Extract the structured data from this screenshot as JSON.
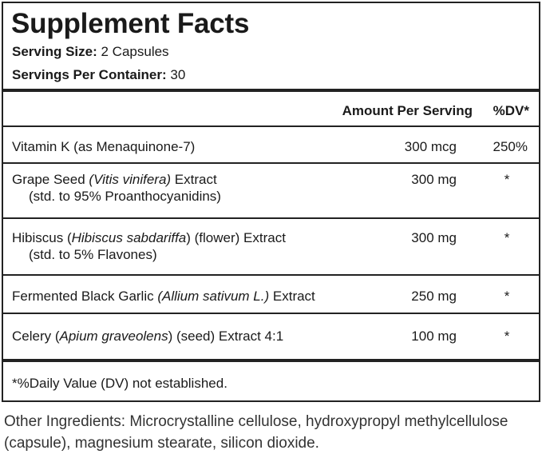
{
  "title": "Supplement Facts",
  "serving_size": {
    "label": "Serving Size:",
    "value": "2 Capsules"
  },
  "servings_per_container": {
    "label": "Servings Per Container:",
    "value": "30"
  },
  "header": {
    "amount": "Amount Per Serving",
    "dv": "%DV*"
  },
  "rows": [
    {
      "pre": "Vitamin K (as Menaquinone-7)",
      "italic": "",
      "post": "",
      "sub": "",
      "amount": "300 mcg",
      "dv": "250%"
    },
    {
      "pre": "Grape Seed ",
      "italic": "(Vitis vinifera)",
      "post": " Extract",
      "sub": "(std. to 95% Proanthocyanidins)",
      "amount": "300 mg",
      "dv": "*"
    },
    {
      "pre": "Hibiscus (",
      "italic": "Hibiscus sabdariffa",
      "post": ") (flower) Extract",
      "sub": "(std. to 5% Flavones)",
      "amount": "300 mg",
      "dv": "*"
    },
    {
      "pre": "Fermented Black Garlic ",
      "italic": "(Allium sativum L.)",
      "post": " Extract",
      "sub": "",
      "amount": "250 mg",
      "dv": "*"
    },
    {
      "pre": "Celery (",
      "italic": "Apium graveolens",
      "post": ") (seed) Extract 4:1",
      "sub": "",
      "amount": "100 mg",
      "dv": "*"
    }
  ],
  "footnote": "*%Daily Value (DV) not established.",
  "other_ingredients": "Other Ingredients: Microcrystalline cellulose, hydroxypropyl methylcellulose (capsule), magnesium stearate, silicon dioxide."
}
